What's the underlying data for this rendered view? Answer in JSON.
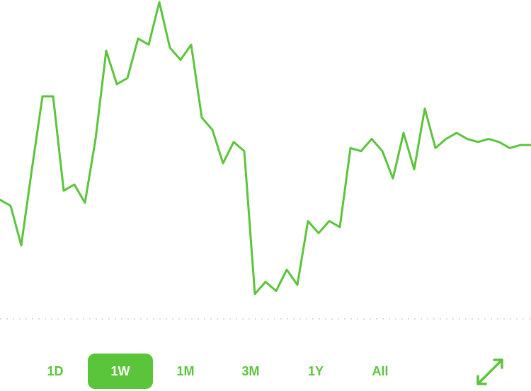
{
  "colors": {
    "accent": "#5ac53b",
    "baseline": "#d0d0d0",
    "active_text": "#ffffff"
  },
  "chart_data": {
    "type": "line",
    "ylim": [
      0,
      100
    ],
    "grid": false,
    "series": [
      {
        "values": [
          35,
          33,
          20,
          45,
          69,
          69,
          38,
          40,
          34,
          55,
          84,
          73,
          75,
          88,
          86,
          100,
          85,
          81,
          86,
          62,
          58,
          47,
          54,
          51,
          4,
          8,
          5,
          12,
          7,
          28,
          24,
          28,
          26,
          52,
          51,
          55,
          51,
          42,
          57,
          45,
          65,
          52,
          55,
          57,
          55,
          54,
          55,
          54,
          52,
          53,
          53
        ]
      }
    ],
    "baseline_value": 0
  },
  "range_selector": {
    "options": [
      {
        "label": "1D"
      },
      {
        "label": "1W"
      },
      {
        "label": "1M"
      },
      {
        "label": "3M"
      },
      {
        "label": "1Y"
      },
      {
        "label": "All"
      }
    ],
    "selected": "1W"
  },
  "expand_button": {
    "icon": "expand-arrows-icon"
  }
}
